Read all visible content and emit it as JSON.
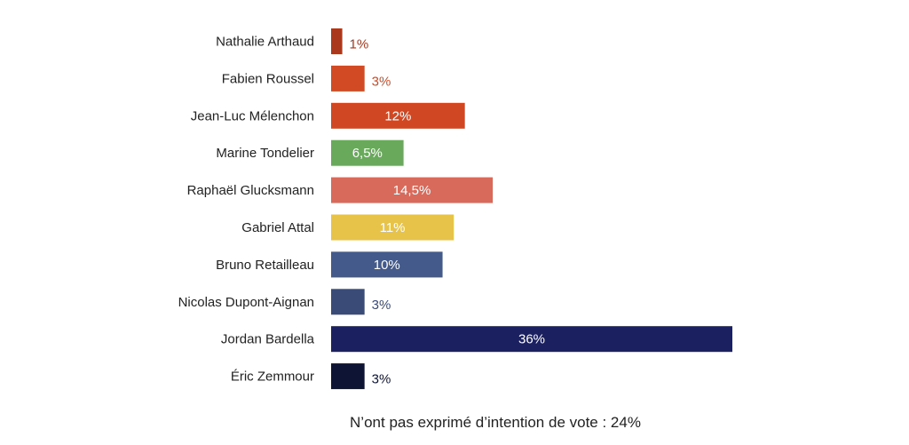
{
  "chart_data": {
    "type": "bar",
    "orientation": "horizontal",
    "categories": [
      "Nathalie Arthaud",
      "Fabien Roussel",
      "Jean-Luc Mélenchon",
      "Marine Tondelier",
      "Raphaël Glucksmann",
      "Gabriel Attal",
      "Bruno Retailleau",
      "Nicolas Dupont-Aignan",
      "Jordan Bardella",
      "Éric Zemmour"
    ],
    "values": [
      1,
      3,
      12,
      6.5,
      14.5,
      11,
      10,
      3,
      36,
      3
    ],
    "value_labels": [
      "1%",
      "3%",
      "12%",
      "6,5%",
      "14,5%",
      "11%",
      "10%",
      "3%",
      "36%",
      "3%"
    ],
    "colors": [
      "#a9381d",
      "#d14a24",
      "#d04823",
      "#69a95c",
      "#d86a5b",
      "#e7c349",
      "#445a8a",
      "#3a4b77",
      "#1b2060",
      "#0e1434"
    ],
    "xlim": [
      0,
      36
    ],
    "grid": false,
    "footnote": "N’ont pas exprimé d’intention de vote : 24%"
  }
}
